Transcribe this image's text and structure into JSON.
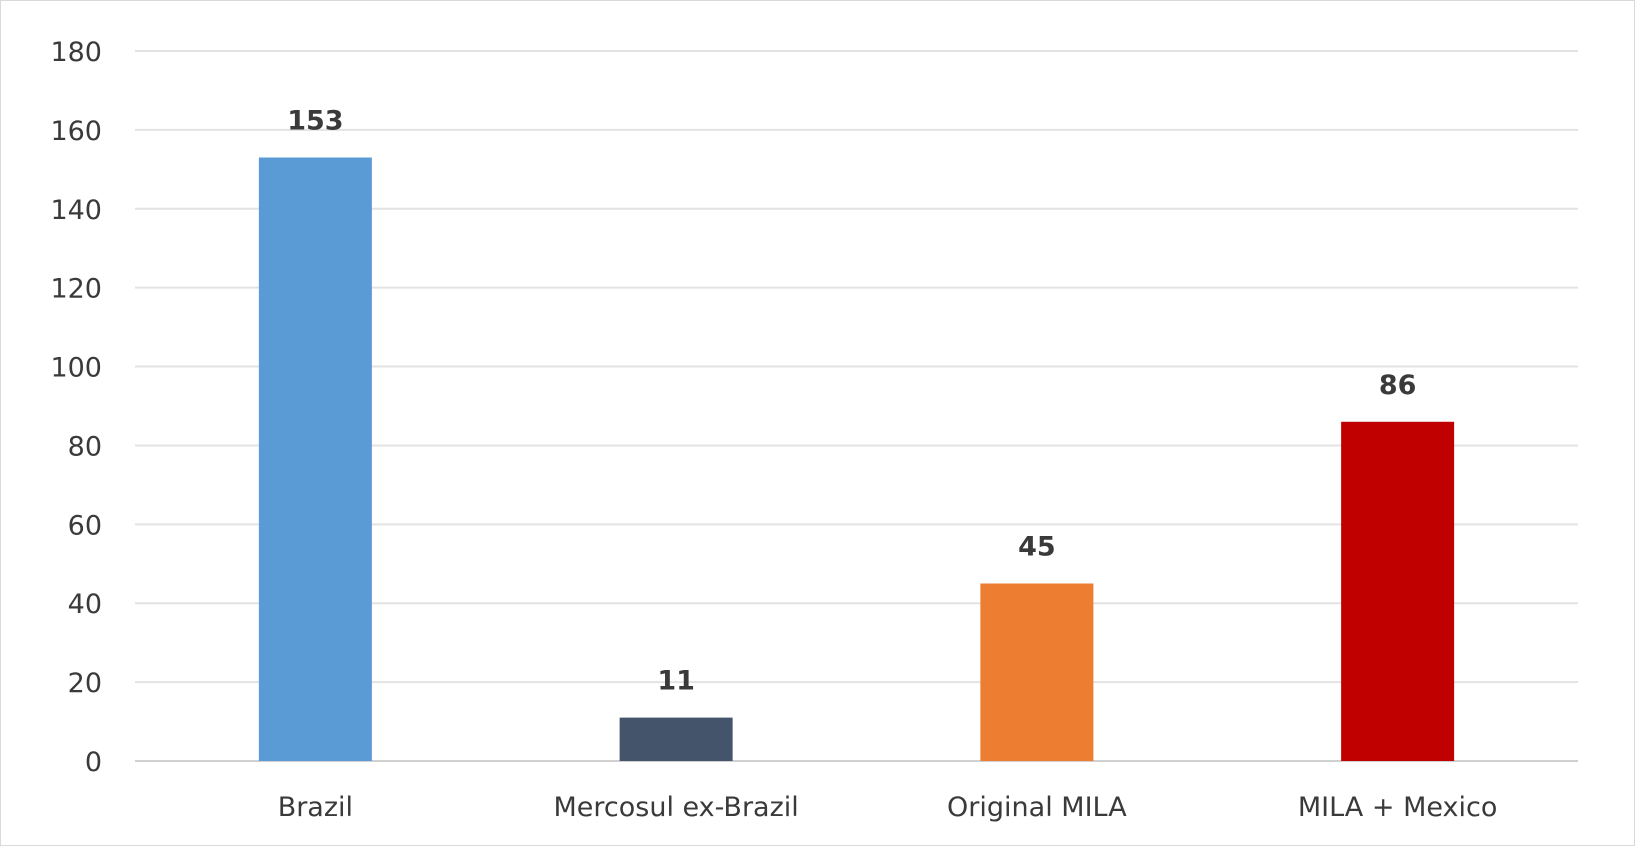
{
  "chart_data": {
    "type": "bar",
    "title": "",
    "xlabel": "",
    "ylabel": "",
    "categories": [
      "Brazil",
      "Mercosul ex-Brazil",
      "Original MILA",
      "MILA + Mexico"
    ],
    "values": [
      153,
      11,
      45,
      86
    ],
    "data_labels": [
      "153",
      "11",
      "45",
      "86"
    ],
    "colors": [
      "#5b9bd5",
      "#44546a",
      "#ed7d31",
      "#c00000"
    ],
    "ylim": [
      0,
      180
    ],
    "yticks": [
      0,
      20,
      40,
      60,
      80,
      100,
      120,
      140,
      160,
      180
    ],
    "ytick_labels": [
      "0",
      "20",
      "40",
      "60",
      "80",
      "100",
      "120",
      "140",
      "160",
      "180"
    ],
    "grid": true,
    "legend": "none"
  }
}
